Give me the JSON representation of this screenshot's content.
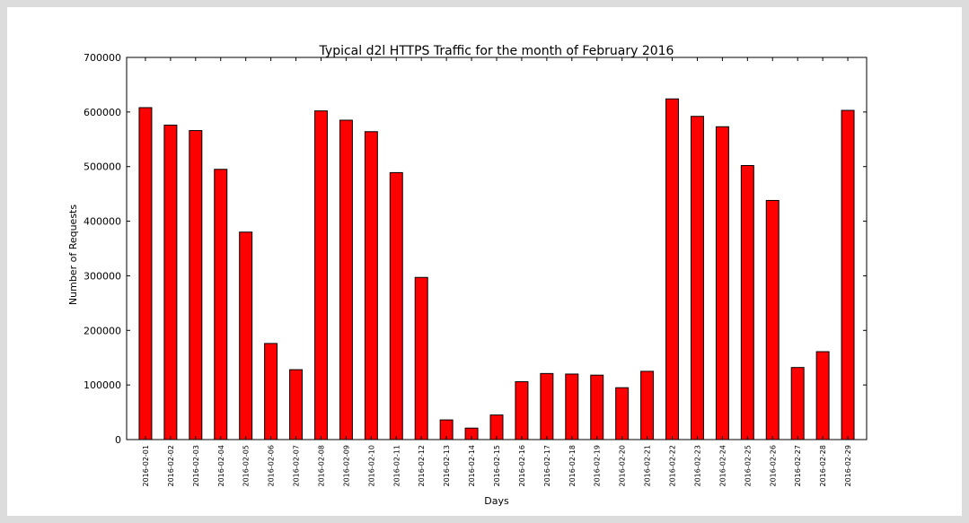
{
  "chart_data": {
    "type": "bar",
    "title": "Typical d2l HTTPS Traffic for the month of February 2016",
    "xlabel": "Days",
    "ylabel": "Number of Requests",
    "ylim": [
      0,
      700000
    ],
    "yticks": [
      "0",
      "100000",
      "200000",
      "300000",
      "400000",
      "500000",
      "600000",
      "700000"
    ],
    "grid": false,
    "bar_color": "#ff0000",
    "categories": [
      "2016-02-01",
      "2016-02-02",
      "2016-02-03",
      "2016-02-04",
      "2016-02-05",
      "2016-02-06",
      "2016-02-07",
      "2016-02-08",
      "2016-02-09",
      "2016-02-10",
      "2016-02-11",
      "2016-02-12",
      "2016-02-13",
      "2016-02-14",
      "2016-02-15",
      "2016-02-16",
      "2016-02-17",
      "2016-02-18",
      "2016-02-19",
      "2016-02-20",
      "2016-02-21",
      "2016-02-22",
      "2016-02-23",
      "2016-02-24",
      "2016-02-25",
      "2016-02-26",
      "2016-02-27",
      "2016-02-28",
      "2016-02-29"
    ],
    "values": [
      608000,
      576000,
      566000,
      495000,
      380000,
      176000,
      128000,
      602000,
      585000,
      564000,
      489000,
      297000,
      36000,
      21000,
      45000,
      106000,
      121000,
      120000,
      118000,
      95000,
      125000,
      624000,
      592000,
      573000,
      502000,
      438000,
      132000,
      161000,
      603000
    ]
  }
}
